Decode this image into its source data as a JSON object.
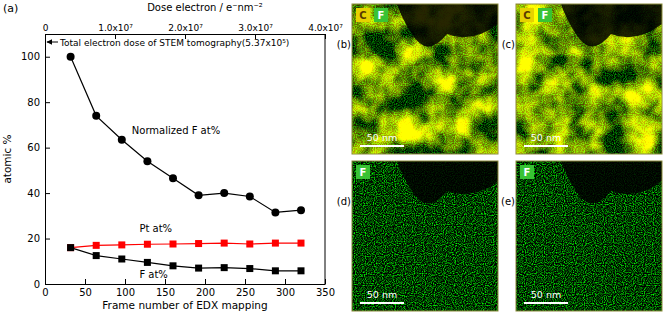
{
  "chart_data": {
    "type": "line",
    "panel_label": "(a)",
    "x_label": "Frame number of EDX mapping",
    "y_label": "atomic %",
    "x2_label": "Dose electron / e⁻nm⁻²",
    "annotation": "Total electron dose of STEM tomography(5.37x10⁵)",
    "x": [
      32,
      64,
      96,
      128,
      160,
      192,
      224,
      256,
      288,
      320
    ],
    "xlim": [
      0,
      350
    ],
    "xticks": [
      0,
      50,
      100,
      150,
      200,
      250,
      300,
      350
    ],
    "ylim": [
      0,
      110
    ],
    "yticks": [
      0,
      20,
      40,
      60,
      80,
      100
    ],
    "x2lim": [
      0,
      40000000
    ],
    "x2ticks": [
      0,
      {
        "value": 10000000,
        "label": "1.0x10⁷"
      },
      {
        "value": 20000000,
        "label": "2.0x10⁷"
      },
      {
        "value": 30000000,
        "label": "3.0x10⁷"
      },
      {
        "value": 40000000,
        "label": "4.0x10⁷"
      }
    ],
    "series": [
      {
        "name": "Normalized F at%",
        "color": "#000000",
        "marker": "circle",
        "values": [
          100,
          74,
          63.5,
          54,
          46.5,
          39,
          40,
          38.5,
          31.5,
          32.5
        ]
      },
      {
        "name": "Pt at%",
        "color": "#ff0000",
        "marker": "square",
        "values": [
          16,
          17,
          17.2,
          17.5,
          17.6,
          17.8,
          18,
          17.6,
          18,
          18
        ]
      },
      {
        "name": "F at%",
        "color": "#000000",
        "marker": "square",
        "values": [
          16,
          12.5,
          11,
          9.5,
          8,
          7,
          7.2,
          6.8,
          5.8,
          5.8
        ]
      }
    ]
  },
  "images": [
    {
      "label": "(b)",
      "elements": [
        "C",
        "F"
      ],
      "scale_bar": "50 nm"
    },
    {
      "label": "(c)",
      "elements": [
        "C",
        "F"
      ],
      "scale_bar": "50 nm"
    },
    {
      "label": "(d)",
      "elements": [
        "F"
      ],
      "scale_bar": "50 nm"
    },
    {
      "label": "(e)",
      "elements": [
        "F"
      ],
      "scale_bar": "50 nm"
    }
  ]
}
